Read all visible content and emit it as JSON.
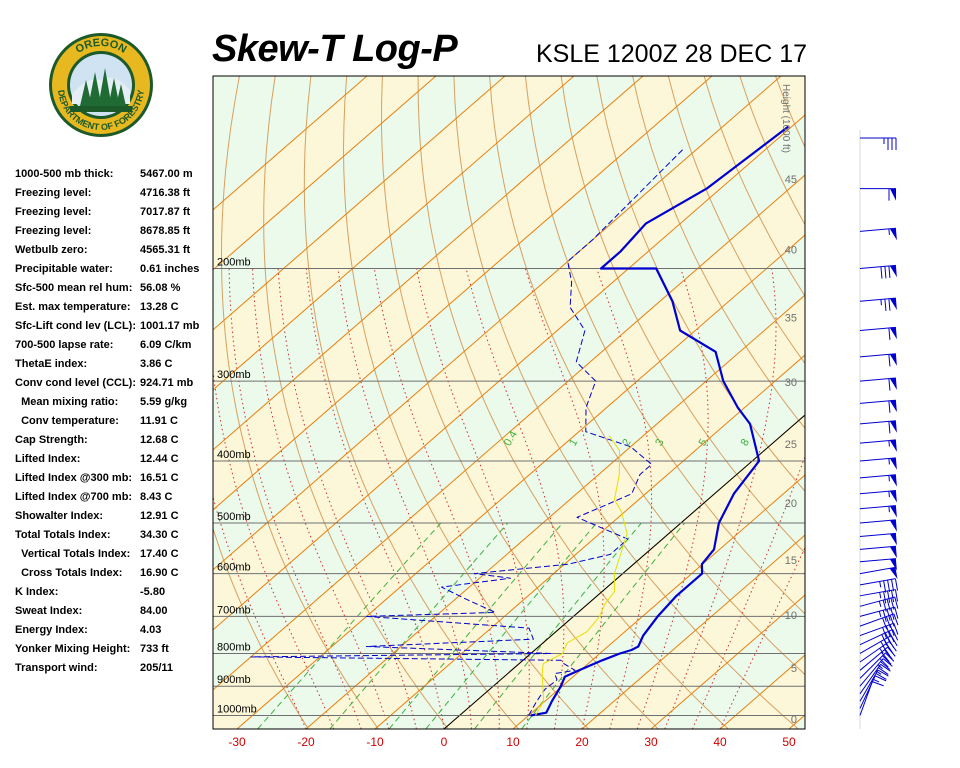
{
  "header": {
    "title": "Skew-T Log-P",
    "subtitle": "KSLE 1200Z 28 DEC 17"
  },
  "logo": {
    "top_text": "OREGON",
    "bottom_text": "DEPARTMENT OF FORESTRY",
    "colors": {
      "ring": "#1d5a2a",
      "gold": "#e8b820",
      "tree": "#1f6b33",
      "sky": "#cfe3f2"
    }
  },
  "indices": [
    {
      "label": "1000-500 mb thick:",
      "value": "5467.00 m"
    },
    {
      "label": "Freezing level:",
      "value": "4716.38 ft"
    },
    {
      "label": "Freezing level:",
      "value": "7017.87 ft"
    },
    {
      "label": "Freezing level:",
      "value": "8678.85 ft"
    },
    {
      "label": "Wetbulb zero:",
      "value": "4565.31 ft"
    },
    {
      "label": "Precipitable water:",
      "value": "0.61 inches"
    },
    {
      "label": "Sfc-500 mean rel hum:",
      "value": "56.08 %"
    },
    {
      "label": "Est. max temperature:",
      "value": "13.28 C"
    },
    {
      "label": "Sfc-Lift cond lev (LCL):",
      "value": "1001.17 mb"
    },
    {
      "label": "700-500 lapse rate:",
      "value": "6.09 C/km"
    },
    {
      "label": "ThetaE index:",
      "value": "3.86 C"
    },
    {
      "label": "Conv cond level (CCL):",
      "value": "924.71 mb"
    },
    {
      "label": "  Mean mixing ratio:",
      "value": "5.59 g/kg"
    },
    {
      "label": "  Conv temperature:",
      "value": "11.91 C"
    },
    {
      "label": "Cap Strength:",
      "value": "12.68 C"
    },
    {
      "label": "Lifted Index:",
      "value": "12.44 C"
    },
    {
      "label": "Lifted Index @300 mb:",
      "value": "16.51 C"
    },
    {
      "label": "Lifted Index @700 mb:",
      "value": "8.43 C"
    },
    {
      "label": "Showalter Index:",
      "value": "12.91 C"
    },
    {
      "label": "Total Totals Index:",
      "value": "34.30 C"
    },
    {
      "label": "  Vertical Totals Index:",
      "value": "17.40 C"
    },
    {
      "label": "  Cross Totals Index:",
      "value": "16.90 C"
    },
    {
      "label": "K Index:",
      "value": "-5.80"
    },
    {
      "label": "Sweat Index:",
      "value": "84.00"
    },
    {
      "label": "Energy Index:",
      "value": "4.03"
    },
    {
      "label": "Yonker Mixing Height:",
      "value": "733 ft"
    },
    {
      "label": "Transport wind:",
      "value": "205/11"
    }
  ],
  "chart_data": {
    "type": "line",
    "x_axis": {
      "unit": "C",
      "range": [
        -32,
        50
      ],
      "ticks": [
        -30,
        -20,
        -10,
        0,
        10,
        20,
        30,
        40,
        50
      ]
    },
    "y_axis": {
      "unit": "mb",
      "scale": "log",
      "range": [
        1050,
        100
      ],
      "pressure_labels": [
        {
          "p": 200,
          "label": "200mb"
        },
        {
          "p": 300,
          "label": "300mb"
        },
        {
          "p": 400,
          "label": "400mb"
        },
        {
          "p": 500,
          "label": "500mb"
        },
        {
          "p": 600,
          "label": "600mb"
        },
        {
          "p": 700,
          "label": "700mb"
        },
        {
          "p": 800,
          "label": "800mb"
        },
        {
          "p": 900,
          "label": "900mb"
        },
        {
          "p": 1000,
          "label": "1000mb"
        }
      ]
    },
    "height_axis": {
      "label": "Height (1000 ft)",
      "ticks": [
        {
          "ft": 0,
          "label": "0"
        },
        {
          "ft": 5,
          "label": "5"
        },
        {
          "ft": 10,
          "label": "10"
        },
        {
          "ft": 15,
          "label": "15"
        },
        {
          "ft": 20,
          "label": "20"
        },
        {
          "ft": 25,
          "label": "25"
        },
        {
          "ft": 30,
          "label": "30"
        },
        {
          "ft": 35,
          "label": "35"
        },
        {
          "ft": 40,
          "label": "40"
        },
        {
          "ft": 45,
          "label": "45"
        },
        {
          "ft": 50,
          "label": "50"
        }
      ]
    },
    "mixing_ratio_labels": [
      {
        "w": 0.4,
        "label": "0.4"
      },
      {
        "w": 1,
        "label": "1"
      },
      {
        "w": 2,
        "label": "2"
      },
      {
        "w": 3,
        "label": "3"
      },
      {
        "w": 5,
        "label": "5"
      },
      {
        "w": 8,
        "label": "8"
      }
    ],
    "series": [
      {
        "name": "temperature",
        "color": "#0000d0",
        "style": "solid",
        "points": [
          [
            10.3,
            1000
          ],
          [
            12.1,
            990
          ],
          [
            11.0,
            950
          ],
          [
            9.8,
            900
          ],
          [
            8.8,
            870
          ],
          [
            9.8,
            850
          ],
          [
            11.5,
            820
          ],
          [
            12.9,
            800
          ],
          [
            14.0,
            790
          ],
          [
            14.4,
            780
          ],
          [
            13.3,
            750
          ],
          [
            12.2,
            700
          ],
          [
            11.5,
            650
          ],
          [
            11.5,
            600
          ],
          [
            9.9,
            580
          ],
          [
            9.2,
            550
          ],
          [
            5.5,
            500
          ],
          [
            2.8,
            450
          ],
          [
            1.0,
            400
          ],
          [
            -6.5,
            350
          ],
          [
            -11.0,
            330
          ],
          [
            -17.5,
            300
          ],
          [
            -23.5,
            270
          ],
          [
            -32.2,
            250
          ],
          [
            -38.2,
            225
          ],
          [
            -46.0,
            200
          ],
          [
            -54.0,
            200
          ],
          [
            -54.0,
            188
          ],
          [
            -55.0,
            170
          ],
          [
            -52.0,
            150
          ],
          [
            -50.5,
            120
          ]
        ]
      },
      {
        "name": "dewpoint",
        "color": "#0000d0",
        "style": "dashed",
        "points": [
          [
            10.0,
            1000
          ],
          [
            8.8,
            950
          ],
          [
            8.0,
            910
          ],
          [
            8.2,
            880
          ],
          [
            6.8,
            860
          ],
          [
            9.2,
            850
          ],
          [
            6.5,
            830
          ],
          [
            5.5,
            820
          ],
          [
            -40.0,
            810
          ],
          [
            3.0,
            800
          ],
          [
            -25.0,
            780
          ],
          [
            -2.0,
            760
          ],
          [
            -4.5,
            730
          ],
          [
            -30.0,
            700
          ],
          [
            -12.0,
            690
          ],
          [
            -18.0,
            660
          ],
          [
            -24.0,
            630
          ],
          [
            -15.5,
            610
          ],
          [
            -21.5,
            600
          ],
          [
            -9.5,
            580
          ],
          [
            -5.0,
            560
          ],
          [
            -5.0,
            530
          ],
          [
            -16.0,
            490
          ],
          [
            -14.0,
            470
          ],
          [
            -12.0,
            450
          ],
          [
            -14.0,
            420
          ],
          [
            -14.0,
            405
          ],
          [
            -20.0,
            380
          ],
          [
            -29.0,
            360
          ],
          [
            -33.0,
            330
          ],
          [
            -36.0,
            300
          ],
          [
            -42.0,
            280
          ],
          [
            -46.0,
            250
          ],
          [
            -52.0,
            230
          ],
          [
            -56.0,
            210
          ],
          [
            -60.0,
            195
          ],
          [
            -60.0,
            180
          ],
          [
            -62.0,
            130
          ]
        ]
      },
      {
        "name": "parcel",
        "color": "#e8e000",
        "style": "solid",
        "points": [
          [
            11.0,
            1000
          ],
          [
            9.8,
            950
          ],
          [
            7.2,
            900
          ],
          [
            5.0,
            860
          ],
          [
            3.5,
            830
          ],
          [
            4.6,
            800
          ],
          [
            3.5,
            770
          ],
          [
            4.5,
            740
          ],
          [
            3.8,
            700
          ],
          [
            2.5,
            670
          ],
          [
            1.8,
            640
          ],
          [
            -1.2,
            600
          ],
          [
            -3.5,
            560
          ],
          [
            -6.0,
            520
          ],
          [
            -10.5,
            480
          ],
          [
            -13.5,
            460
          ],
          [
            -17.0,
            420
          ],
          [
            -21.0,
            385
          ],
          [
            -25.0,
            365
          ]
        ]
      }
    ],
    "wind_barbs": [
      {
        "p": 1000,
        "dir": 200,
        "spd": 10
      },
      {
        "p": 975,
        "dir": 205,
        "spd": 15
      },
      {
        "p": 950,
        "dir": 210,
        "spd": 20
      },
      {
        "p": 925,
        "dir": 215,
        "spd": 25
      },
      {
        "p": 900,
        "dir": 220,
        "spd": 25
      },
      {
        "p": 875,
        "dir": 225,
        "spd": 30
      },
      {
        "p": 850,
        "dir": 230,
        "spd": 30
      },
      {
        "p": 825,
        "dir": 235,
        "spd": 35
      },
      {
        "p": 800,
        "dir": 240,
        "spd": 35
      },
      {
        "p": 775,
        "dir": 245,
        "spd": 40
      },
      {
        "p": 750,
        "dir": 250,
        "spd": 40
      },
      {
        "p": 725,
        "dir": 250,
        "spd": 40
      },
      {
        "p": 700,
        "dir": 255,
        "spd": 45
      },
      {
        "p": 675,
        "dir": 255,
        "spd": 45
      },
      {
        "p": 650,
        "dir": 260,
        "spd": 45
      },
      {
        "p": 625,
        "dir": 260,
        "spd": 45
      },
      {
        "p": 600,
        "dir": 260,
        "spd": 50
      },
      {
        "p": 575,
        "dir": 265,
        "spd": 50
      },
      {
        "p": 550,
        "dir": 265,
        "spd": 50
      },
      {
        "p": 525,
        "dir": 265,
        "spd": 50
      },
      {
        "p": 500,
        "dir": 265,
        "spd": 50
      },
      {
        "p": 475,
        "dir": 265,
        "spd": 55
      },
      {
        "p": 450,
        "dir": 265,
        "spd": 55
      },
      {
        "p": 425,
        "dir": 265,
        "spd": 55
      },
      {
        "p": 400,
        "dir": 265,
        "spd": 55
      },
      {
        "p": 375,
        "dir": 265,
        "spd": 55
      },
      {
        "p": 350,
        "dir": 265,
        "spd": 60
      },
      {
        "p": 325,
        "dir": 265,
        "spd": 60
      },
      {
        "p": 300,
        "dir": 265,
        "spd": 60
      },
      {
        "p": 275,
        "dir": 265,
        "spd": 60
      },
      {
        "p": 250,
        "dir": 265,
        "spd": 60
      },
      {
        "p": 225,
        "dir": 265,
        "spd": 75
      },
      {
        "p": 200,
        "dir": 265,
        "spd": 80
      },
      {
        "p": 175,
        "dir": 265,
        "spd": 55
      },
      {
        "p": 150,
        "dir": 270,
        "spd": 60
      },
      {
        "p": 125,
        "dir": 270,
        "spd": 35
      }
    ],
    "colors": {
      "background": "#ebfaeb",
      "isotherm": "#e88010",
      "dry_adiabat": "#d8a060",
      "moist_adiabat": "#d03030",
      "mixing_ratio": "#40b040",
      "isobar": "#707070"
    }
  }
}
